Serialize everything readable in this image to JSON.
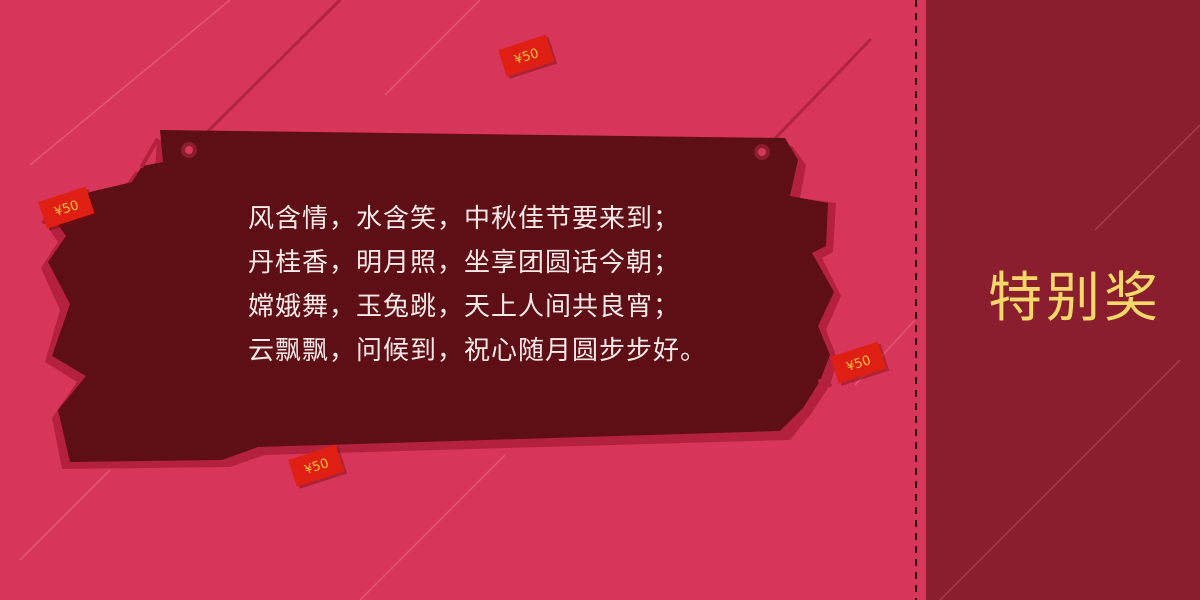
{
  "poem": {
    "lines": [
      "风含情，水含笑，中秋佳节要来到；",
      "丹桂香，明月照，坐享团圆话今朝；",
      "嫦娥舞，玉兔跳，天上人间共良宵；",
      "云飘飘，问候到，祝心随月圆步步好。"
    ]
  },
  "prize": {
    "title": "特别奖"
  },
  "tags": {
    "label": "¥50"
  },
  "colors": {
    "background": "#d7365a",
    "board": "#5e0e15",
    "board_shadow": "#b4213f",
    "side_panel": "#8a1d2e",
    "prize_text": "#f6d86a",
    "poem_text": "#f7e9e8",
    "tag_red": "#e01f14",
    "tag_text": "#f5c23a"
  }
}
